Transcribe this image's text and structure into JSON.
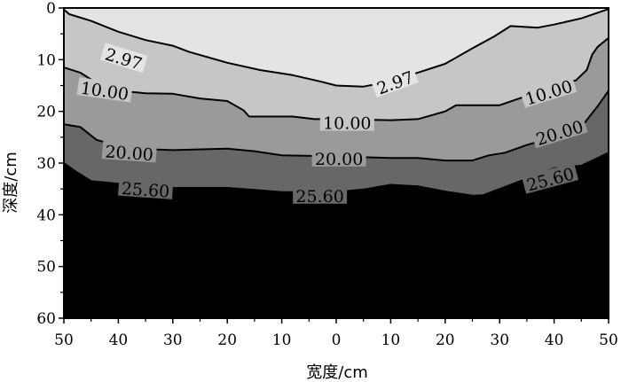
{
  "chart_data": {
    "type": "contour",
    "xlabel": "宽度/cm",
    "ylabel": "深度/cm",
    "x_ticks": [
      "50",
      "40",
      "30",
      "20",
      "10",
      "0",
      "10",
      "20",
      "30",
      "40",
      "50"
    ],
    "y_ticks": [
      "0",
      "10",
      "20",
      "30",
      "40",
      "50",
      "60"
    ],
    "xlim": [
      -50,
      50
    ],
    "ylim": [
      0,
      60
    ],
    "fill_colors": [
      "#e4e4e4",
      "#c6c6c6",
      "#9a9a9a",
      "#676767"
    ],
    "contours": [
      {
        "level": 2.97,
        "label": "2.97",
        "points": [
          [
            -50,
            0.3
          ],
          [
            -49,
            1.2
          ],
          [
            -45,
            2.5
          ],
          [
            -40,
            4.6
          ],
          [
            -35,
            6.2
          ],
          [
            -30,
            7.3
          ],
          [
            -27,
            8.5
          ],
          [
            -20,
            10.6
          ],
          [
            -14,
            12
          ],
          [
            -8,
            13
          ],
          [
            -3,
            14.2
          ],
          [
            0,
            15
          ],
          [
            5,
            15.2
          ],
          [
            10,
            14.2
          ],
          [
            15,
            12.5
          ],
          [
            20,
            10.8
          ],
          [
            25,
            7.8
          ],
          [
            29,
            5.5
          ],
          [
            32,
            3.5
          ],
          [
            37,
            3.8
          ],
          [
            40,
            3.2
          ],
          [
            45,
            2
          ],
          [
            50,
            0.2
          ]
        ],
        "labels": [
          {
            "text": "2.97",
            "x": -39,
            "y": 9.8,
            "angle": 17
          },
          {
            "text": "2.97",
            "x": 10.8,
            "y": 14.4,
            "angle": -20
          }
        ]
      },
      {
        "level": 10.0,
        "label": "10.00",
        "points": [
          [
            -50,
            11.5
          ],
          [
            -47,
            12.5
          ],
          [
            -44,
            14.5
          ],
          [
            -40,
            16
          ],
          [
            -35,
            16.5
          ],
          [
            -30,
            16.6
          ],
          [
            -25,
            17.5
          ],
          [
            -20,
            18
          ],
          [
            -17,
            19.8
          ],
          [
            -16,
            21
          ],
          [
            -12,
            21
          ],
          [
            -8,
            21
          ],
          [
            -4,
            21.5
          ],
          [
            0,
            21.5
          ],
          [
            10,
            21.7
          ],
          [
            15,
            21.5
          ],
          [
            20,
            20
          ],
          [
            22,
            18.8
          ],
          [
            30,
            18.8
          ],
          [
            35,
            17
          ],
          [
            40,
            15
          ],
          [
            44,
            14
          ],
          [
            46,
            12
          ],
          [
            47,
            9
          ],
          [
            48,
            7.5
          ],
          [
            50,
            5.8
          ]
        ],
        "labels": [
          {
            "text": "10.00",
            "x": -42.5,
            "y": 16,
            "angle": 8
          },
          {
            "text": "10.00",
            "x": 2,
            "y": 22.2,
            "angle": 0
          },
          {
            "text": "10.00",
            "x": 39,
            "y": 16.3,
            "angle": -17
          }
        ]
      },
      {
        "level": 20.0,
        "label": "20.00",
        "points": [
          [
            -50,
            22.5
          ],
          [
            -47,
            23
          ],
          [
            -44,
            25.5
          ],
          [
            -40,
            26.7
          ],
          [
            -35,
            27.3
          ],
          [
            -30,
            27.5
          ],
          [
            -20,
            27.2
          ],
          [
            -15,
            27.7
          ],
          [
            -10,
            28.5
          ],
          [
            0,
            28.7
          ],
          [
            10,
            29
          ],
          [
            15,
            29
          ],
          [
            20,
            29.5
          ],
          [
            25,
            29.5
          ],
          [
            28,
            28.5
          ],
          [
            31,
            28
          ],
          [
            35,
            26.5
          ],
          [
            40,
            25
          ],
          [
            45,
            23
          ],
          [
            48,
            19
          ],
          [
            50,
            16
          ]
        ],
        "labels": [
          {
            "text": "20.00",
            "x": -38,
            "y": 28,
            "angle": 4
          },
          {
            "text": "20.00",
            "x": 0.5,
            "y": 29.1,
            "angle": 0
          },
          {
            "text": "20.00",
            "x": 41,
            "y": 24.1,
            "angle": -17
          }
        ]
      },
      {
        "level": 25.6,
        "label": "25.60",
        "points": [
          [
            -50,
            30
          ],
          [
            -48,
            31.5
          ],
          [
            -45,
            33.5
          ],
          [
            -40,
            34
          ],
          [
            -35,
            34.5
          ],
          [
            -30,
            34.8
          ],
          [
            -20,
            34.8
          ],
          [
            -15,
            35.2
          ],
          [
            -10,
            35.6
          ],
          [
            0,
            35.6
          ],
          [
            5,
            35.1
          ],
          [
            10,
            34.2
          ],
          [
            15,
            34.5
          ],
          [
            20,
            35.5
          ],
          [
            25,
            36.3
          ],
          [
            27,
            36.2
          ],
          [
            30,
            35
          ],
          [
            35,
            33
          ],
          [
            40,
            31
          ],
          [
            45,
            30.5
          ],
          [
            47,
            29.5
          ],
          [
            50,
            28
          ]
        ],
        "labels": [
          {
            "text": "25.60",
            "x": -35,
            "y": 35.1,
            "angle": 4
          },
          {
            "text": "25.60",
            "x": -3,
            "y": 36.3,
            "angle": 0
          },
          {
            "text": "25.60",
            "x": 39.3,
            "y": 33.1,
            "angle": -15
          }
        ]
      }
    ]
  }
}
